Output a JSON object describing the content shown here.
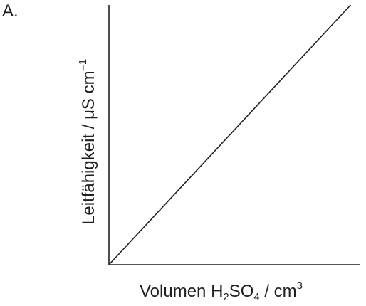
{
  "option_label": "A.",
  "chart_data": {
    "type": "line",
    "title": "",
    "xlabel": {
      "prefix": "Volumen H",
      "sub1": "2",
      "mid": "SO",
      "sub2": "4",
      "unit_prefix": " / cm",
      "sup": "3"
    },
    "ylabel": {
      "prefix": "Leitfähigkeit / μS cm",
      "sup": "–1"
    },
    "x_ticks": [],
    "y_ticks": [],
    "grid": false,
    "legend": "none",
    "series": [
      {
        "x": [
          0,
          1
        ],
        "y": [
          0,
          1
        ]
      }
    ],
    "xlim": [
      0,
      1.04
    ],
    "ylim": [
      0,
      1.0
    ]
  },
  "colors": {
    "axis": "#231f20",
    "line": "#231f20"
  }
}
